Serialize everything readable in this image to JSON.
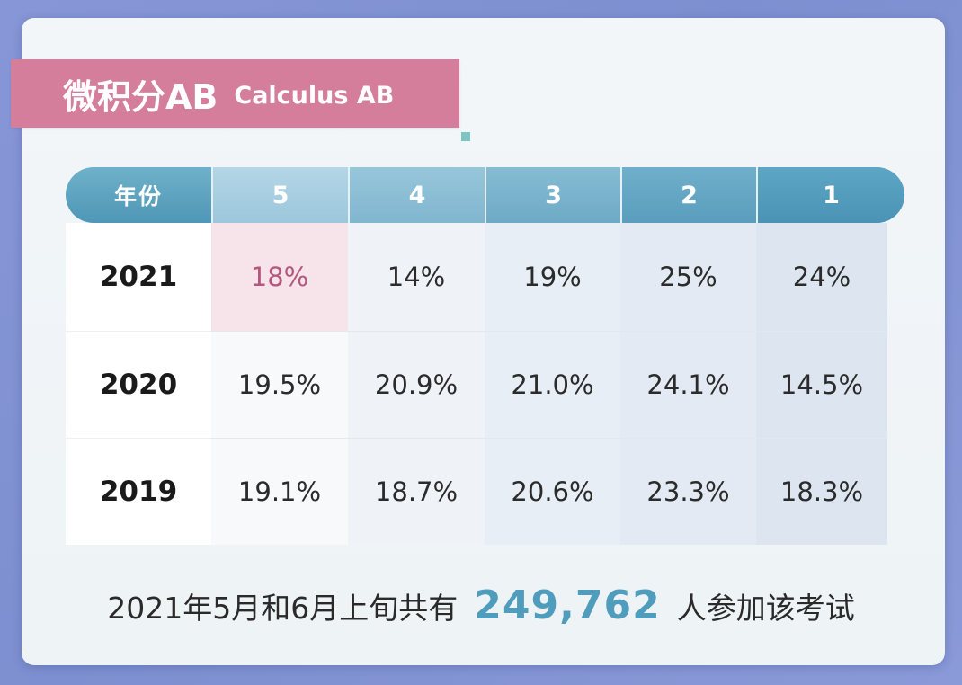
{
  "title": {
    "main": "微积分AB",
    "sub": "Calculus AB"
  },
  "table": {
    "header": [
      "年份",
      "5",
      "4",
      "3",
      "2",
      "1"
    ],
    "rows": [
      {
        "year": "2021",
        "values": [
          "18%",
          "14%",
          "19%",
          "25%",
          "24%"
        ]
      },
      {
        "year": "2020",
        "values": [
          "19.5%",
          "20.9%",
          "21.0%",
          "24.1%",
          "14.5%"
        ]
      },
      {
        "year": "2019",
        "values": [
          "19.1%",
          "18.7%",
          "20.6%",
          "23.3%",
          "18.3%"
        ]
      }
    ]
  },
  "footer": {
    "prefix": "2021年5月和6月上旬共有",
    "count": "249,762",
    "suffix": "人参加该考试"
  },
  "colors": {
    "title_banner": "#d47e9c",
    "header_blue": "#4e97b6",
    "highlight_pink": "#f7e3ea",
    "count_blue": "#4f9cbc"
  }
}
